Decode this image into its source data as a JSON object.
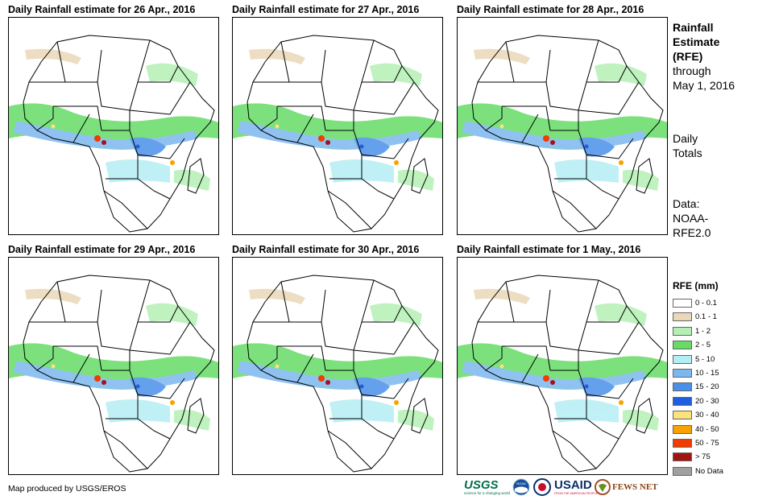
{
  "panels": [
    {
      "title": "Daily Rainfall estimate for 26 Apr., 2016"
    },
    {
      "title": "Daily Rainfall estimate for 27 Apr., 2016"
    },
    {
      "title": "Daily Rainfall estimate for 28 Apr., 2016"
    },
    {
      "title": "Daily Rainfall estimate for 29 Apr., 2016"
    },
    {
      "title": "Daily Rainfall estimate for 30 Apr., 2016"
    },
    {
      "title": "Daily Rainfall estimate for 1 May., 2016"
    }
  ],
  "side": {
    "title_line1": "Rainfall",
    "title_line2": "Estimate",
    "title_line3": "(RFE)",
    "through_line1": "through",
    "through_line2": "May 1, 2016",
    "totals_line1": "Daily",
    "totals_line2": "Totals",
    "data_line1": "Data:",
    "data_line2": "NOAA-",
    "data_line3": "RFE2.0"
  },
  "legend": {
    "title": "RFE (mm)",
    "items": [
      {
        "label": "0 - 0.1",
        "color": "#ffffff"
      },
      {
        "label": "0.1 - 1",
        "color": "#ead8b9"
      },
      {
        "label": "1 - 2",
        "color": "#b4f0b4"
      },
      {
        "label": "2 - 5",
        "color": "#66dc66"
      },
      {
        "label": "5 - 10",
        "color": "#b4eef4"
      },
      {
        "label": "10 - 15",
        "color": "#7cb8ee"
      },
      {
        "label": "15 - 20",
        "color": "#4a90e8"
      },
      {
        "label": "20 - 30",
        "color": "#1e5ee0"
      },
      {
        "label": "30 - 40",
        "color": "#fbe27a"
      },
      {
        "label": "40 - 50",
        "color": "#f7a200"
      },
      {
        "label": "50 - 75",
        "color": "#f03c00"
      },
      {
        "label": "> 75",
        "color": "#a01414"
      },
      {
        "label": "No Data",
        "color": "#a0a0a0"
      }
    ]
  },
  "credit": "Map produced by USGS/EROS",
  "logos": {
    "usgs": "USGS",
    "usgs_tagline": "science for a changing world",
    "noaa": "NOAA",
    "usaid": "USAID",
    "usaid_tagline": "FROM THE AMERICAN PEOPLE",
    "fewsnet": "FEWS NET"
  }
}
